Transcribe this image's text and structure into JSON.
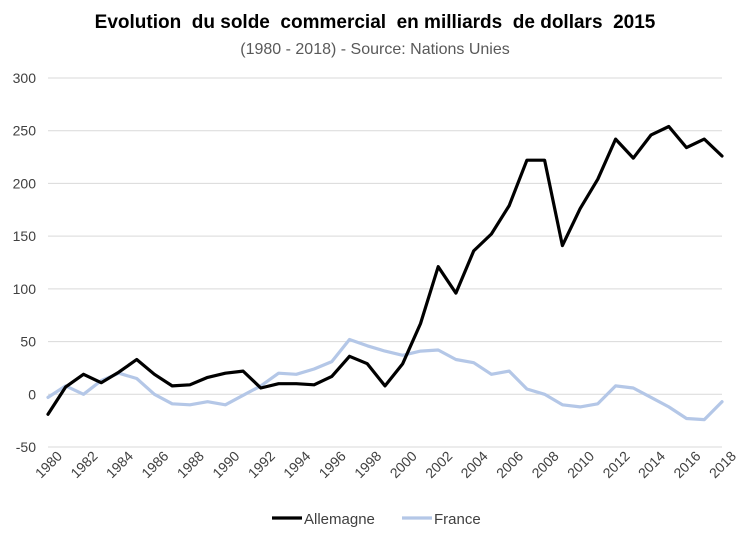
{
  "chart_data": {
    "type": "line",
    "title": "Evolution  du solde  commercial  en milliards  de dollars  2015",
    "subtitle": "(1980 - 2018) - Source: Nations Unies",
    "xlabel": "",
    "ylabel": "",
    "ylim": [
      -50,
      300
    ],
    "yticks": [
      "300",
      "250",
      "200",
      "150",
      "100",
      "50",
      "0",
      "-50"
    ],
    "ytick_values": [
      300,
      250,
      200,
      150,
      100,
      50,
      0,
      -50
    ],
    "x": [
      1980,
      1981,
      1982,
      1983,
      1984,
      1985,
      1986,
      1987,
      1988,
      1989,
      1990,
      1991,
      1992,
      1993,
      1994,
      1995,
      1996,
      1997,
      1998,
      1999,
      2000,
      2001,
      2002,
      2003,
      2004,
      2005,
      2006,
      2007,
      2008,
      2009,
      2010,
      2011,
      2012,
      2013,
      2014,
      2015,
      2016,
      2017,
      2018
    ],
    "xticks": [
      "1980",
      "1982",
      "1984",
      "1986",
      "1988",
      "1990",
      "1992",
      "1994",
      "1996",
      "1998",
      "2000",
      "2002",
      "2004",
      "2006",
      "2008",
      "2010",
      "2012",
      "2014",
      "2016",
      "2018"
    ],
    "grid": true,
    "legend": "bottom",
    "series": [
      {
        "name": "Allemagne",
        "color": "#000000",
        "values": [
          -19,
          7,
          19,
          11,
          21,
          33,
          19,
          8,
          9,
          16,
          20,
          22,
          6,
          10,
          10,
          9,
          17,
          36,
          29,
          8,
          29,
          67,
          121,
          96,
          136,
          152,
          179,
          222,
          222,
          141,
          176,
          204,
          242,
          224,
          246,
          254,
          234,
          242,
          226
        ]
      },
      {
        "name": "France",
        "color": "#B4C7E7",
        "values": [
          -3,
          8,
          0,
          13,
          20,
          15,
          0,
          -9,
          -10,
          -7,
          -10,
          -1,
          8,
          20,
          19,
          24,
          31,
          52,
          46,
          41,
          37,
          41,
          42,
          33,
          30,
          19,
          22,
          5,
          0,
          -10,
          -12,
          -9,
          8,
          6,
          -3,
          -12,
          -23,
          -24,
          -7
        ]
      }
    ]
  }
}
